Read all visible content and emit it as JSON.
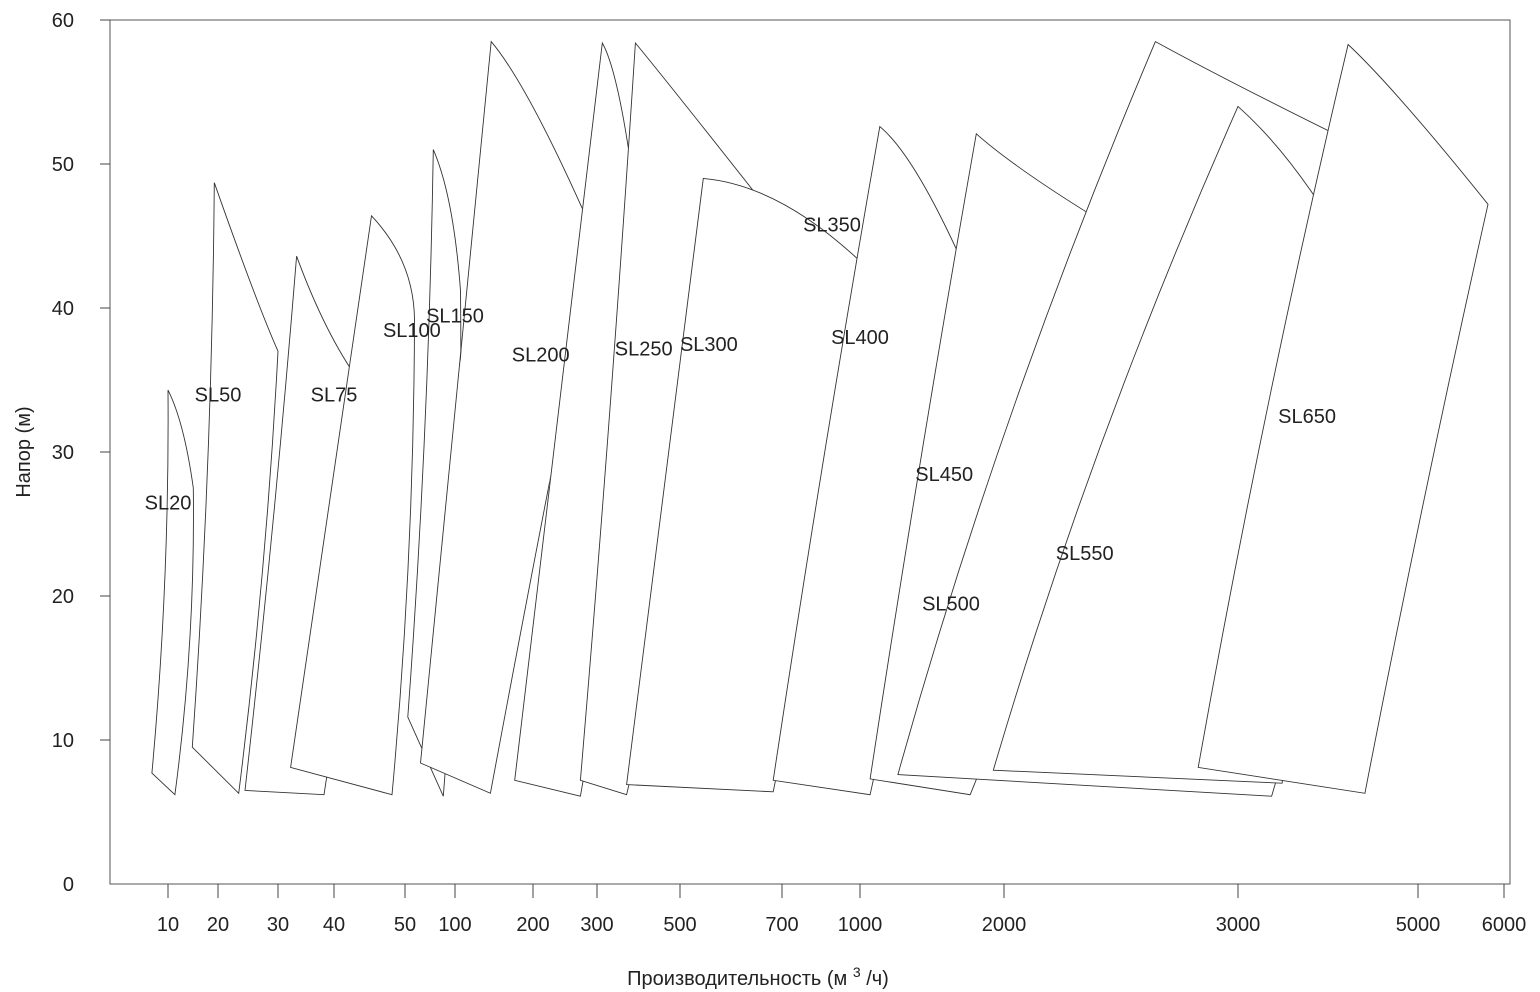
{
  "chart_data": {
    "type": "area",
    "title": "",
    "xlabel": "Производительность (м",
    "xlabel_sup": "3",
    "xlabel_tail": "/ч)",
    "ylabel": "Напор (м)",
    "x_scale": "log",
    "ylim": [
      0,
      60
    ],
    "y_ticks": [
      0,
      10,
      20,
      30,
      40,
      50,
      60
    ],
    "x_ticks": [
      10,
      20,
      30,
      40,
      50,
      100,
      200,
      300,
      500,
      700,
      1000,
      2000,
      3000,
      5000,
      6000
    ],
    "grid": false,
    "legend": "none",
    "series": [
      {
        "name": "SL20",
        "label_at": [
          10,
          26
        ],
        "points": [
          [
            8,
            7.7
          ],
          [
            10,
            34.3
          ],
          [
            11.5,
            31.8
          ],
          [
            14.2,
            27.5
          ],
          [
            11,
            6.2
          ]
        ]
      },
      {
        "name": "SL50",
        "label_at": [
          20,
          33.5
        ],
        "points": [
          [
            14,
            9.5
          ],
          [
            19,
            48.7
          ],
          [
            25,
            40
          ],
          [
            30,
            37
          ],
          [
            23,
            6.3
          ]
        ]
      },
      {
        "name": "SL75",
        "label_at": [
          40,
          33.5
        ],
        "points": [
          [
            24,
            6.5
          ],
          [
            33,
            43.6
          ],
          [
            38,
            37
          ],
          [
            45,
            33.8
          ],
          [
            38,
            6.2
          ]
        ]
      },
      {
        "name": "SL100",
        "label_at": [
          55,
          38
        ],
        "points": [
          [
            32,
            8.1
          ],
          [
            45,
            46.4
          ],
          [
            52,
            43
          ],
          [
            57,
            39.2
          ],
          [
            48,
            6.2
          ]
        ]
      },
      {
        "name": "SL150",
        "label_at": [
          100,
          39
        ],
        "points": [
          [
            52,
            11.6
          ],
          [
            74,
            51
          ],
          [
            90,
            47.5
          ],
          [
            105,
            41.2
          ],
          [
            85,
            6.1
          ]
        ]
      },
      {
        "name": "SL200",
        "label_at": [
          210,
          36.3
        ],
        "points": [
          [
            62,
            8.4
          ],
          [
            138,
            58.5
          ],
          [
            185,
            55
          ],
          [
            300,
            44.6
          ],
          [
            137,
            6.3
          ]
        ]
      },
      {
        "name": "SL250",
        "label_at": [
          400,
          36.7
        ],
        "points": [
          [
            170,
            7.2
          ],
          [
            310,
            58.4
          ],
          [
            350,
            55
          ],
          [
            420,
            37
          ],
          [
            270,
            6.1
          ]
        ]
      },
      {
        "name": "SL300",
        "label_at": [
          550,
          37
        ],
        "points": [
          [
            270,
            7.2
          ],
          [
            380,
            58.4
          ],
          [
            460,
            55
          ],
          [
            690,
            46
          ],
          [
            360,
            6.2
          ]
        ]
      },
      {
        "name": "SL350",
        "label_at": [
          880,
          45.3
        ],
        "points": [
          [
            360,
            6.9
          ],
          [
            540,
            49
          ],
          [
            700,
            48.2
          ],
          [
            1100,
            41.9
          ],
          [
            680,
            6.4
          ]
        ]
      },
      {
        "name": "SL400",
        "label_at": [
          1000,
          37.5
        ],
        "points": [
          [
            680,
            7.2
          ],
          [
            1100,
            52.6
          ],
          [
            1300,
            50
          ],
          [
            1800,
            40
          ],
          [
            1050,
            6.2
          ]
        ]
      },
      {
        "name": "SL450",
        "label_at": [
          1500,
          28
        ],
        "points": [
          [
            1050,
            7.3
          ],
          [
            1750,
            52.1
          ],
          [
            2100,
            48
          ],
          [
            2900,
            41.3
          ],
          [
            1700,
            6.2
          ]
        ]
      },
      {
        "name": "SL500",
        "label_at": [
          1550,
          19
        ],
        "points": [
          [
            1200,
            7.6
          ],
          [
            2600,
            58.5
          ],
          [
            3200,
            54
          ],
          [
            5700,
            47.2
          ],
          [
            3300,
            6.1
          ]
        ]
      },
      {
        "name": "SL550",
        "label_at": [
          2300,
          22.5
        ],
        "points": [
          [
            1900,
            7.9
          ],
          [
            3000,
            54
          ],
          [
            3500,
            50
          ],
          [
            4200,
            43
          ],
          [
            3400,
            7
          ]
        ]
      },
      {
        "name": "SL650",
        "label_at": [
          3650,
          32
        ],
        "points": [
          [
            2800,
            8.1
          ],
          [
            4100,
            58.3
          ],
          [
            4600,
            55
          ],
          [
            5800,
            47.2
          ],
          [
            4300,
            6.3
          ]
        ]
      }
    ]
  }
}
